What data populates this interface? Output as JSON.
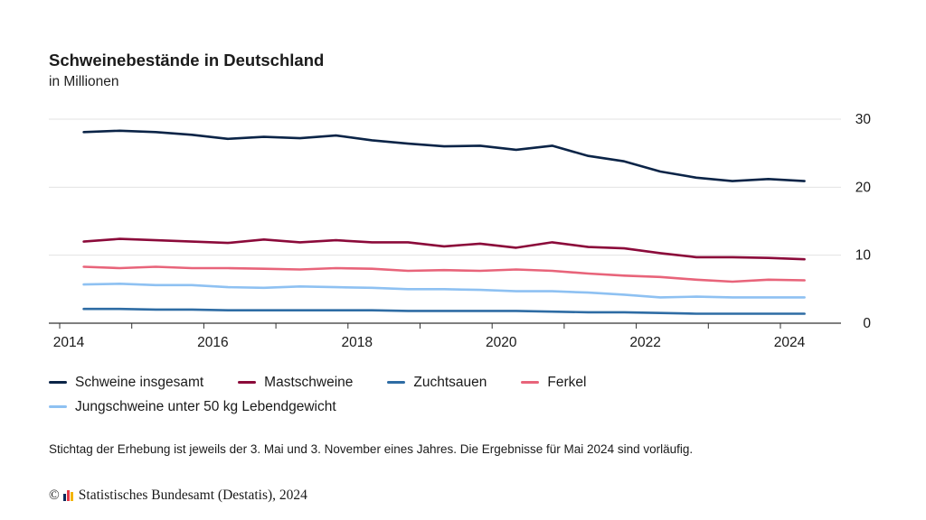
{
  "header": {
    "title": "Schweinebestände in Deutschland",
    "subtitle": "in Millionen"
  },
  "footnote": "Stichtag der Erhebung ist jeweils der 3. Mai und 3. November eines Jahres. Die Ergebnisse für Mai 2024 sind vorläufig.",
  "copyright": {
    "symbol": "©",
    "text": "Statistisches Bundesamt (Destatis), 2024",
    "logo_colors": [
      "#0b2a5b",
      "#e63946",
      "#f4b400"
    ]
  },
  "chart_data": {
    "type": "line",
    "title": "Schweinebestände in Deutschland",
    "subtitle": "in Millionen",
    "xlabel": "",
    "ylabel": "",
    "x": [
      "2014-05",
      "2014-11",
      "2015-05",
      "2015-11",
      "2016-05",
      "2016-11",
      "2017-05",
      "2017-11",
      "2018-05",
      "2018-11",
      "2019-05",
      "2019-11",
      "2020-05",
      "2020-11",
      "2021-05",
      "2021-11",
      "2022-05",
      "2022-11",
      "2023-05",
      "2023-11",
      "2024-05"
    ],
    "x_tick_labels": [
      "2014",
      "2016",
      "2018",
      "2020",
      "2022",
      "2024"
    ],
    "y_ticks": [
      0,
      10,
      20,
      30
    ],
    "ylim": [
      0,
      30
    ],
    "y_axis_side": "right",
    "grid": true,
    "legend_position": "bottom",
    "series": [
      {
        "name": "Schweine insgesamt",
        "color": "#0b2447",
        "values": [
          28.1,
          28.3,
          28.1,
          27.7,
          27.1,
          27.4,
          27.2,
          27.6,
          26.9,
          26.4,
          26.0,
          26.1,
          25.5,
          26.1,
          24.6,
          23.8,
          22.3,
          21.4,
          20.9,
          21.2,
          20.9
        ]
      },
      {
        "name": "Mastschweine",
        "color": "#8b0a3a",
        "values": [
          12.0,
          12.4,
          12.2,
          12.0,
          11.8,
          12.3,
          11.9,
          12.2,
          11.9,
          11.9,
          11.3,
          11.7,
          11.1,
          11.9,
          11.2,
          11.0,
          10.3,
          9.7,
          9.7,
          9.6,
          9.4
        ]
      },
      {
        "name": "Zuchtsauen",
        "color": "#2e6ca4",
        "values": [
          2.1,
          2.1,
          2.0,
          2.0,
          1.9,
          1.9,
          1.9,
          1.9,
          1.9,
          1.8,
          1.8,
          1.8,
          1.8,
          1.7,
          1.6,
          1.6,
          1.5,
          1.4,
          1.4,
          1.4,
          1.4
        ]
      },
      {
        "name": "Ferkel",
        "color": "#e8647a",
        "values": [
          8.3,
          8.1,
          8.3,
          8.1,
          8.1,
          8.0,
          7.9,
          8.1,
          8.0,
          7.7,
          7.8,
          7.7,
          7.9,
          7.7,
          7.3,
          7.0,
          6.8,
          6.4,
          6.1,
          6.4,
          6.3
        ]
      },
      {
        "name": "Jungschweine unter 50 kg Lebendgewicht",
        "color": "#8ec1f2",
        "values": [
          5.7,
          5.8,
          5.6,
          5.6,
          5.3,
          5.2,
          5.4,
          5.3,
          5.2,
          5.0,
          5.0,
          4.9,
          4.7,
          4.7,
          4.5,
          4.2,
          3.8,
          3.9,
          3.8,
          3.8,
          3.8
        ]
      }
    ]
  }
}
